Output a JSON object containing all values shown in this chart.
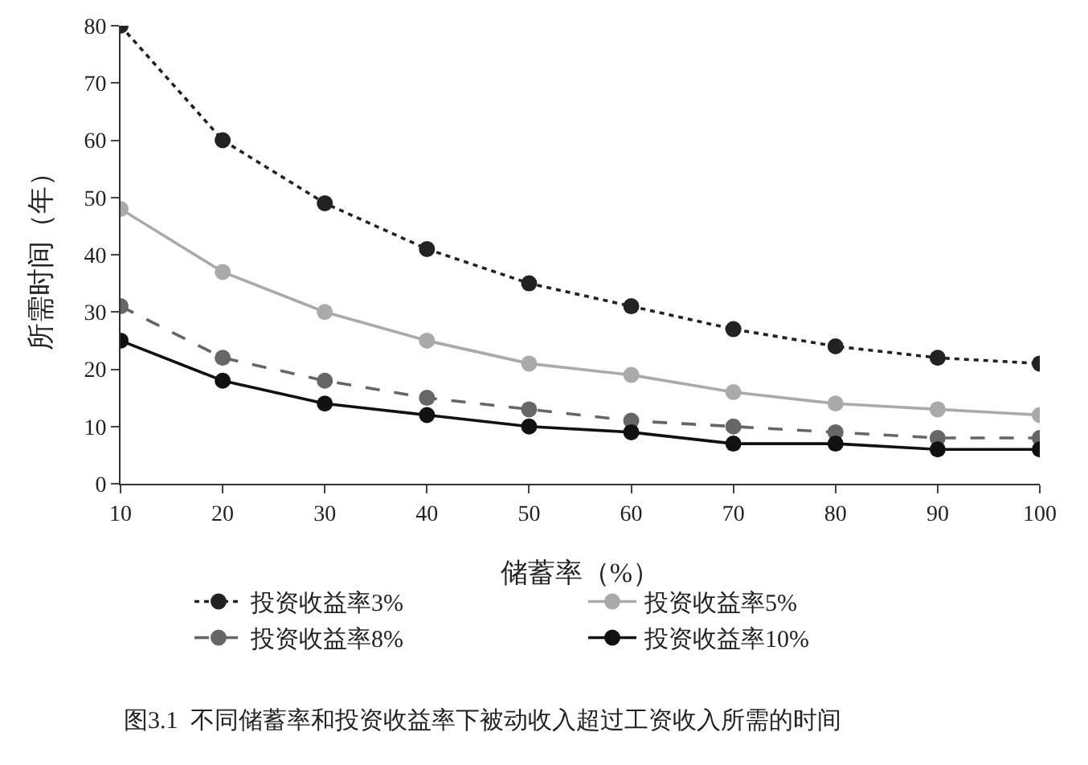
{
  "chart_data": {
    "type": "line",
    "xlabel": "储蓄率（%）",
    "ylabel": "所需时间（年）",
    "x": [
      10,
      20,
      30,
      40,
      50,
      60,
      70,
      80,
      90,
      100
    ],
    "series": [
      {
        "name": "投资收益率3%",
        "color": "#222222",
        "line_style": "dotted",
        "values": [
          80,
          60,
          49,
          41,
          35,
          31,
          27,
          24,
          22,
          21
        ]
      },
      {
        "name": "投资收益率5%",
        "color": "#aaaaaa",
        "line_style": "solid",
        "values": [
          48,
          37,
          30,
          25,
          21,
          19,
          16,
          14,
          13,
          12
        ]
      },
      {
        "name": "投资收益率8%",
        "color": "#666666",
        "line_style": "dashed",
        "values": [
          31,
          22,
          18,
          15,
          13,
          11,
          10,
          9,
          8,
          8
        ]
      },
      {
        "name": "投资收益率10%",
        "color": "#111111",
        "line_style": "solid",
        "values": [
          25,
          18,
          14,
          12,
          10,
          9,
          7,
          7,
          6,
          6
        ]
      }
    ],
    "xlim": [
      10,
      100
    ],
    "xticks": [
      10,
      20,
      30,
      40,
      50,
      60,
      70,
      80,
      90,
      100
    ],
    "ylim": [
      0,
      80
    ],
    "yticks": [
      0,
      10,
      20,
      30,
      40,
      50,
      60,
      70,
      80
    ],
    "grid": false,
    "legend": "bottom",
    "marker": "circle",
    "annotations": [
      "图3.1  不同储蓄率和投资收益率下被动收入超过工资收入所需的时间"
    ]
  }
}
